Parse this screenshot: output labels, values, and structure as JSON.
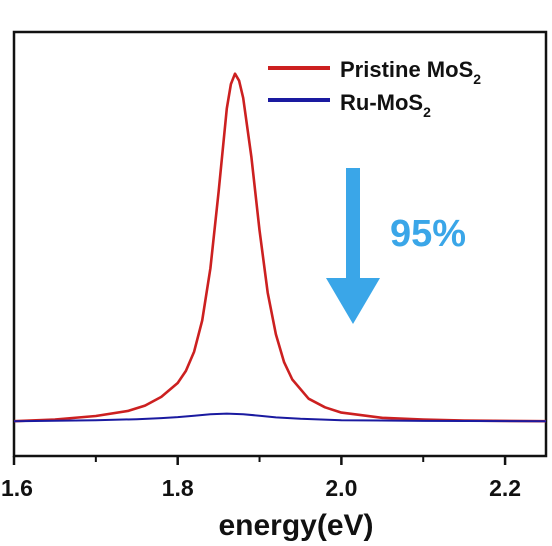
{
  "chart_data": {
    "type": "line",
    "xlabel": "energy(eV)",
    "ylabel": "",
    "xlim": [
      1.6,
      2.25
    ],
    "ylim": [
      -0.1,
      1.12
    ],
    "x_ticks": [
      1.6,
      1.8,
      2.0,
      2.2
    ],
    "x_tick_labels": [
      "1.6",
      "1.8",
      "2.0",
      "2.2"
    ],
    "x_minor_ticks": [
      1.7,
      1.9,
      2.1
    ],
    "grid": false,
    "legend_position": "top-right",
    "series": [
      {
        "name": "Pristine MoS",
        "name_subscript": "2",
        "color": "#cc2020",
        "x": [
          1.6,
          1.65,
          1.7,
          1.74,
          1.76,
          1.78,
          1.8,
          1.81,
          1.82,
          1.83,
          1.84,
          1.85,
          1.86,
          1.865,
          1.87,
          1.875,
          1.88,
          1.89,
          1.9,
          1.91,
          1.92,
          1.93,
          1.94,
          1.96,
          1.98,
          2.0,
          2.05,
          2.1,
          2.15,
          2.25
        ],
        "y": [
          0.0,
          0.005,
          0.015,
          0.03,
          0.045,
          0.07,
          0.11,
          0.145,
          0.2,
          0.29,
          0.44,
          0.66,
          0.9,
          0.97,
          1.0,
          0.98,
          0.93,
          0.76,
          0.55,
          0.37,
          0.25,
          0.17,
          0.12,
          0.065,
          0.04,
          0.025,
          0.01,
          0.005,
          0.002,
          0.0
        ]
      },
      {
        "name": "Ru-MoS",
        "name_subscript": "2",
        "color": "#1a1aa0",
        "x": [
          1.6,
          1.7,
          1.75,
          1.78,
          1.8,
          1.82,
          1.84,
          1.86,
          1.88,
          1.9,
          1.92,
          1.95,
          2.0,
          2.1,
          2.25
        ],
        "y": [
          0.0,
          0.003,
          0.006,
          0.009,
          0.012,
          0.016,
          0.02,
          0.022,
          0.02,
          0.016,
          0.011,
          0.007,
          0.003,
          0.001,
          0.0
        ]
      }
    ],
    "annotations": [
      {
        "text": "95%",
        "color": "#3aa6e8",
        "arrow": "down"
      }
    ]
  }
}
